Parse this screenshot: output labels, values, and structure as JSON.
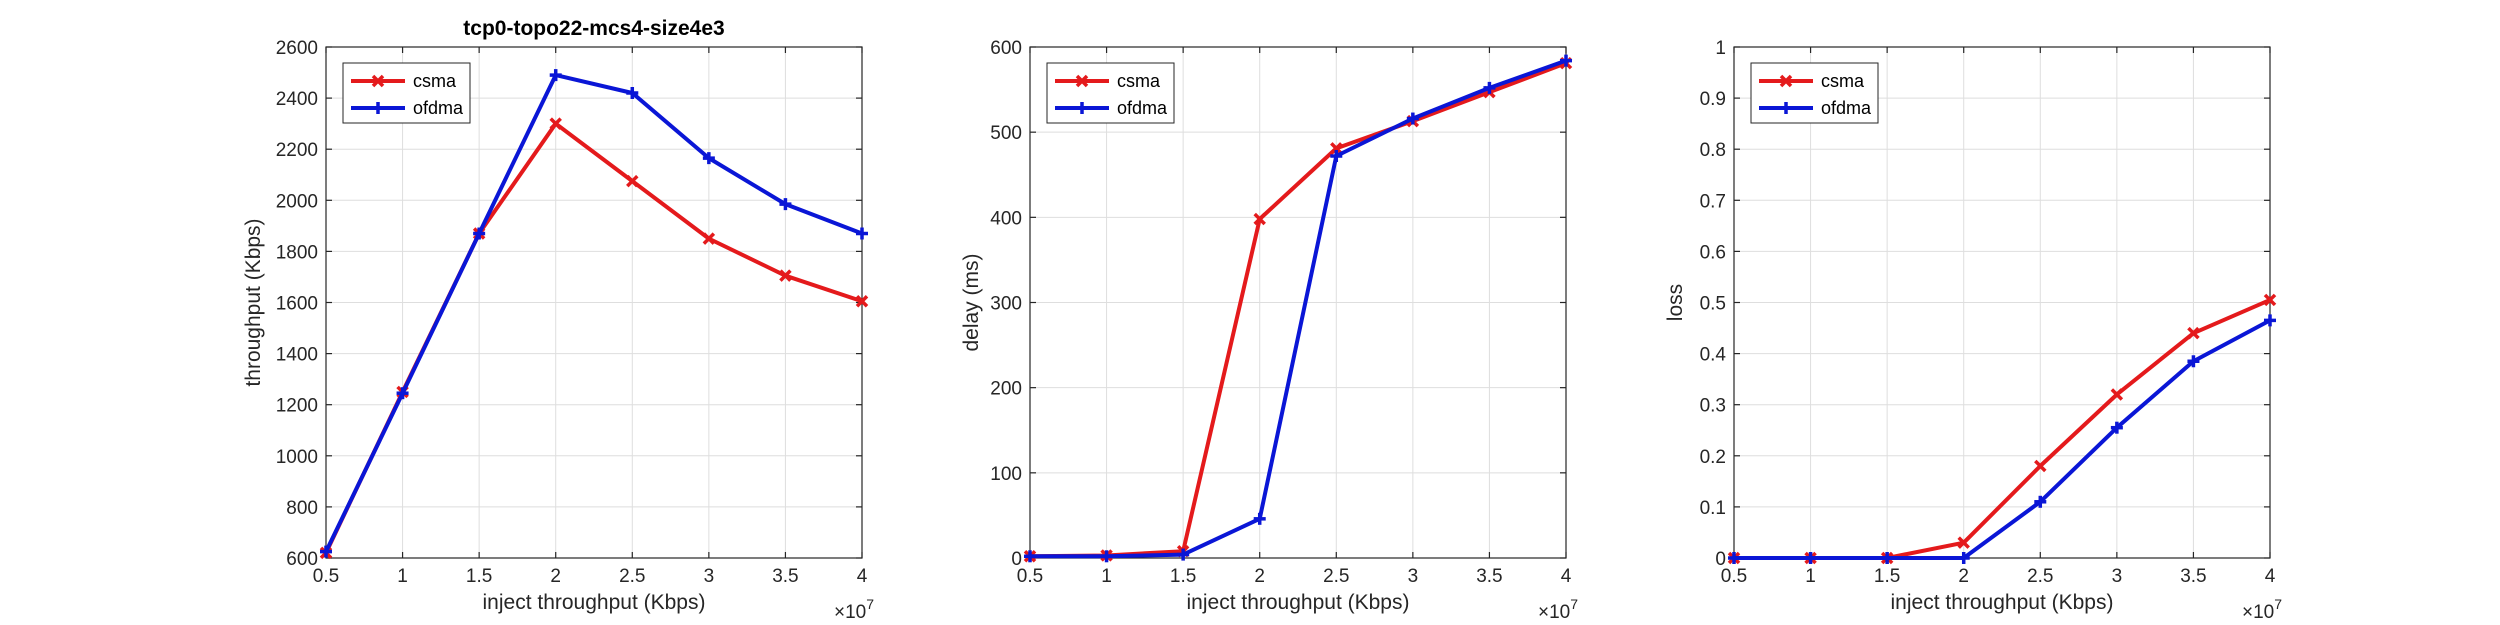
{
  "figure": {
    "x_exponent_base": "×10",
    "x_exponent_power": "7"
  },
  "colors": {
    "csma": "#e41a1c",
    "ofdma": "#0a16d6",
    "axis": "#262626",
    "grid": "#dedede"
  },
  "chart_data": [
    {
      "type": "line",
      "title": "tcp0-topo22-mcs4-size4e3",
      "xlabel": "inject throughput (Kbps)",
      "ylabel": "throughput (Kbps)",
      "x": [
        0.5,
        1,
        1.5,
        2,
        2.5,
        3,
        3.5,
        4
      ],
      "x_ticks": [
        "0.5",
        "1",
        "1.5",
        "2",
        "2.5",
        "3",
        "3.5",
        "4"
      ],
      "xlim": [
        0.5,
        4
      ],
      "ylim": [
        600,
        2600
      ],
      "y_ticks": [
        "600",
        "800",
        "1000",
        "1200",
        "1400",
        "1600",
        "1800",
        "2000",
        "2200",
        "2400",
        "2600"
      ],
      "grid": true,
      "legend": "top-left",
      "series": [
        {
          "name": "csma",
          "values": [
            620,
            1250,
            1870,
            2300,
            2075,
            1850,
            1705,
            1605
          ]
        },
        {
          "name": "ofdma",
          "values": [
            625,
            1245,
            1870,
            2490,
            2420,
            2165,
            1985,
            1870
          ]
        }
      ]
    },
    {
      "type": "line",
      "title": "",
      "xlabel": "inject throughput (Kbps)",
      "ylabel": "delay (ms)",
      "x": [
        0.5,
        1,
        1.5,
        2,
        2.5,
        3,
        3.5,
        4
      ],
      "x_ticks": [
        "0.5",
        "1",
        "1.5",
        "2",
        "2.5",
        "3",
        "3.5",
        "4"
      ],
      "xlim": [
        0.5,
        4
      ],
      "ylim": [
        0,
        600
      ],
      "y_ticks": [
        "0",
        "100",
        "200",
        "300",
        "400",
        "500",
        "600"
      ],
      "grid": true,
      "legend": "top-left",
      "series": [
        {
          "name": "csma",
          "values": [
            2,
            3,
            8,
            398,
            481,
            513,
            547,
            581
          ]
        },
        {
          "name": "ofdma",
          "values": [
            2,
            2,
            4,
            46,
            472,
            516,
            552,
            584
          ]
        }
      ]
    },
    {
      "type": "line",
      "title": "",
      "xlabel": "inject throughput (Kbps)",
      "ylabel": "loss",
      "x": [
        0.5,
        1,
        1.5,
        2,
        2.5,
        3,
        3.5,
        4
      ],
      "x_ticks": [
        "0.5",
        "1",
        "1.5",
        "2",
        "2.5",
        "3",
        "3.5",
        "4"
      ],
      "xlim": [
        0.5,
        4
      ],
      "ylim": [
        0,
        1
      ],
      "y_ticks": [
        "0",
        "0.1",
        "0.2",
        "0.3",
        "0.4",
        "0.5",
        "0.6",
        "0.7",
        "0.8",
        "0.9",
        "1"
      ],
      "grid": true,
      "legend": "top-left",
      "series": [
        {
          "name": "csma",
          "values": [
            0,
            0,
            0,
            0.03,
            0.18,
            0.32,
            0.44,
            0.505
          ]
        },
        {
          "name": "ofdma",
          "values": [
            0,
            0,
            0,
            0,
            0.11,
            0.255,
            0.385,
            0.465
          ]
        }
      ]
    }
  ]
}
